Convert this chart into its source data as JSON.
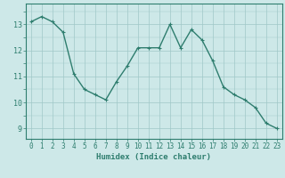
{
  "x": [
    0,
    1,
    2,
    3,
    4,
    5,
    6,
    7,
    8,
    9,
    10,
    11,
    12,
    13,
    14,
    15,
    16,
    17,
    18,
    19,
    20,
    21,
    22,
    23
  ],
  "y": [
    13.1,
    13.3,
    13.1,
    12.7,
    11.1,
    10.5,
    10.3,
    10.1,
    10.8,
    11.4,
    12.1,
    12.1,
    12.1,
    13.0,
    12.1,
    12.8,
    12.4,
    11.6,
    10.6,
    10.3,
    10.1,
    9.8,
    9.2,
    9.0
  ],
  "line_color": "#2e7d6e",
  "marker": "+",
  "marker_size": 3,
  "bg_color": "#cde8e8",
  "grid_color": "#a0c8c8",
  "xlabel": "Humidex (Indice chaleur)",
  "xlabel_fontsize": 6.5,
  "ylabel_ticks": [
    9,
    10,
    11,
    12,
    13
  ],
  "xlim": [
    -0.5,
    23.5
  ],
  "ylim": [
    8.6,
    13.8
  ],
  "tick_fontsize": 5.5,
  "line_width": 1.0
}
